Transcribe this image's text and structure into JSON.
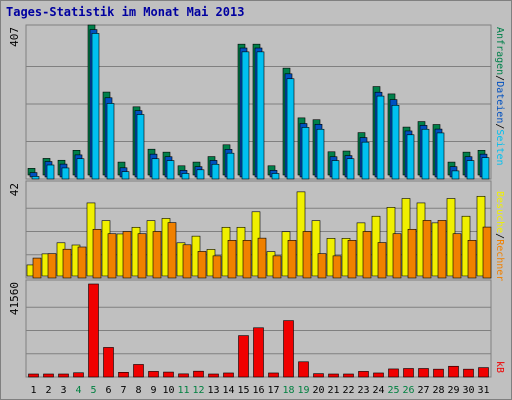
{
  "title": "Tages-Statistik im Monat Mai 2013",
  "colors": {
    "anfragen": "#00804a",
    "dateien": "#0050c0",
    "seiten": "#00c0f0",
    "besuche": "#f0f000",
    "rechner": "#f08000",
    "kb": "#f00000",
    "weekend_day": "#008040",
    "weekday": "#000000"
  },
  "labels": {
    "kb": "kB",
    "rechner": "Rechner",
    "besuche": "Besuche",
    "seiten": "Seiten",
    "dateien": "Dateien",
    "anfragen": "Anfragen",
    "slash": "/"
  },
  "chart_data": {
    "type": "bar",
    "title": "Tages-Statistik im Monat Mai 2013",
    "categories": [
      "1",
      "2",
      "3",
      "4",
      "5",
      "6",
      "7",
      "8",
      "9",
      "10",
      "11",
      "12",
      "13",
      "14",
      "15",
      "16",
      "17",
      "18",
      "19",
      "20",
      "21",
      "22",
      "23",
      "24",
      "25",
      "26",
      "27",
      "28",
      "29",
      "30",
      "31"
    ],
    "weekend_days": [
      "4",
      "5",
      "11",
      "12",
      "18",
      "19",
      "25",
      "26"
    ],
    "panels": [
      {
        "id": "hits",
        "ymax_label": "407",
        "ylim": [
          0,
          407
        ],
        "series": [
          {
            "name": "Anfragen",
            "values": [
              18,
              45,
              40,
              67,
              407,
              225,
              35,
              185,
              70,
              62,
              25,
              35,
              50,
              82,
              355,
              355,
              25,
              290,
              155,
              150,
              63,
              65,
              115,
              240,
              220,
              130,
              145,
              137,
              35,
              62,
              67
            ]
          },
          {
            "name": "Dateien",
            "values": [
              12,
              42,
              35,
              60,
              400,
              215,
              25,
              180,
              62,
              55,
              18,
              28,
              45,
              75,
              350,
              350,
              18,
              280,
              145,
              143,
              55,
              58,
              107,
              230,
              210,
              125,
              140,
              130,
              28,
              55,
              62
            ]
          },
          {
            "name": "Seiten",
            "values": [
              7,
              38,
              30,
              55,
              395,
              205,
              20,
              175,
              55,
              50,
              15,
              25,
              40,
              70,
              345,
              345,
              15,
              272,
              140,
              135,
              50,
              55,
              100,
              225,
              200,
              120,
              135,
              125,
              22,
              50,
              58
            ]
          }
        ]
      },
      {
        "id": "visits",
        "ymax_label": "42",
        "ylim": [
          0,
          42
        ],
        "series": [
          {
            "name": "Besuche",
            "values": [
              5,
              10,
              15,
              14,
              33,
              25,
              19,
              22,
              25,
              26,
              15,
              18,
              12,
              22,
              22,
              29,
              11,
              20,
              38,
              25,
              17,
              17,
              24,
              27,
              31,
              35,
              33,
              24,
              35,
              27,
              36
            ]
          },
          {
            "name": "Rechner",
            "values": [
              9,
              11,
              13,
              14,
              22,
              20,
              21,
              20,
              21,
              25,
              15,
              12,
              10,
              17,
              17,
              18,
              10,
              17,
              21,
              11,
              10,
              17,
              21,
              16,
              20,
              22,
              26,
              26,
              20,
              17,
              23
            ]
          }
        ]
      },
      {
        "id": "kb",
        "ymax_label": "41560",
        "ylim": [
          0,
          41560
        ],
        "series": [
          {
            "name": "kB",
            "values": [
              500,
              500,
              900,
              1900,
              41560,
              13200,
              2100,
              5600,
              2500,
              2200,
              1400,
              2600,
              800,
              1800,
              18500,
              22000,
              1800,
              25200,
              6800,
              1500,
              1300,
              1300,
              2500,
              1800,
              3600,
              3800,
              3800,
              3500,
              4800,
              3500,
              4200
            ]
          }
        ]
      }
    ]
  }
}
